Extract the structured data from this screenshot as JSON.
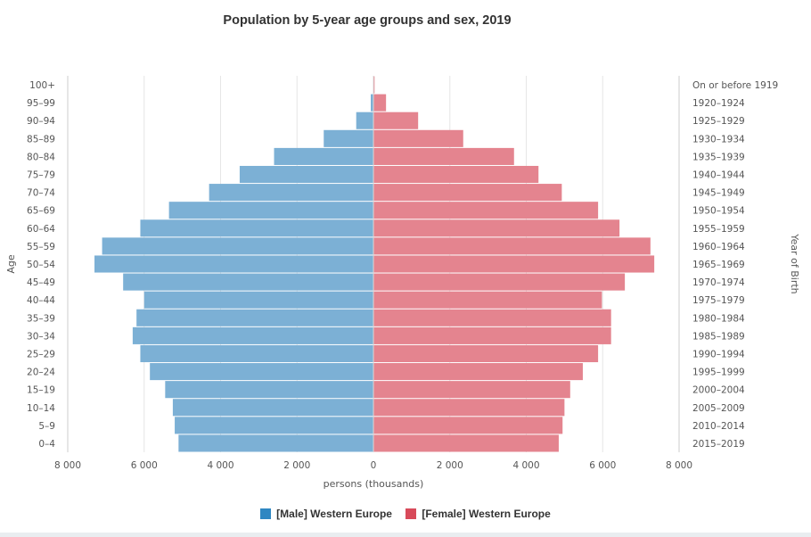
{
  "chart_data": {
    "type": "bar",
    "orientation": "horizontal",
    "title": "Population by 5-year age groups and sex, 2019",
    "xlabel": "persons (thousands)",
    "ylabel": "Age",
    "ylabel_right": "Year of Birth",
    "xlim": [
      -8000,
      8000
    ],
    "x_ticks": [
      -8000,
      -6000,
      -4000,
      -2000,
      0,
      2000,
      4000,
      6000,
      8000
    ],
    "x_tick_labels": [
      "8 000",
      "6 000",
      "4 000",
      "2 000",
      "0",
      "2 000",
      "4 000",
      "6 000",
      "8 000"
    ],
    "grid": true,
    "legend_position": "bottom",
    "categories": [
      "100+",
      "95–99",
      "90–94",
      "85–89",
      "80–84",
      "75–79",
      "70–74",
      "65–69",
      "60–64",
      "55–59",
      "50–54",
      "45–49",
      "40–44",
      "35–39",
      "30–34",
      "25–29",
      "20–24",
      "15–19",
      "10–14",
      "5–9",
      "0–4"
    ],
    "birth_years": [
      "On or before 1919",
      "1920–1924",
      "1925–1929",
      "1930–1934",
      "1935–1939",
      "1940–1944",
      "1945–1949",
      "1950–1954",
      "1955–1959",
      "1960–1964",
      "1965–1969",
      "1970–1974",
      "1975–1979",
      "1980–1984",
      "1985–1989",
      "1990–1994",
      "1995–1999",
      "2000–2004",
      "2005–2009",
      "2010–2014",
      "2015–2019"
    ],
    "series": [
      {
        "name": "[Male] Western Europe",
        "color": "#7cb0d5",
        "legend_color": "#2f87c2",
        "values": [
          10,
          70,
          450,
          1300,
          2600,
          3500,
          4300,
          5350,
          6100,
          7100,
          7300,
          6550,
          6000,
          6200,
          6300,
          6100,
          5850,
          5450,
          5250,
          5200,
          5100
        ]
      },
      {
        "name": "[Female] Western Europe",
        "color": "#e4848f",
        "legend_color": "#d84a5a",
        "values": [
          30,
          330,
          1170,
          2350,
          3680,
          4320,
          4930,
          5880,
          6440,
          7250,
          7350,
          6580,
          5980,
          6220,
          6220,
          5880,
          5480,
          5150,
          5000,
          4950,
          4850
        ]
      }
    ]
  }
}
